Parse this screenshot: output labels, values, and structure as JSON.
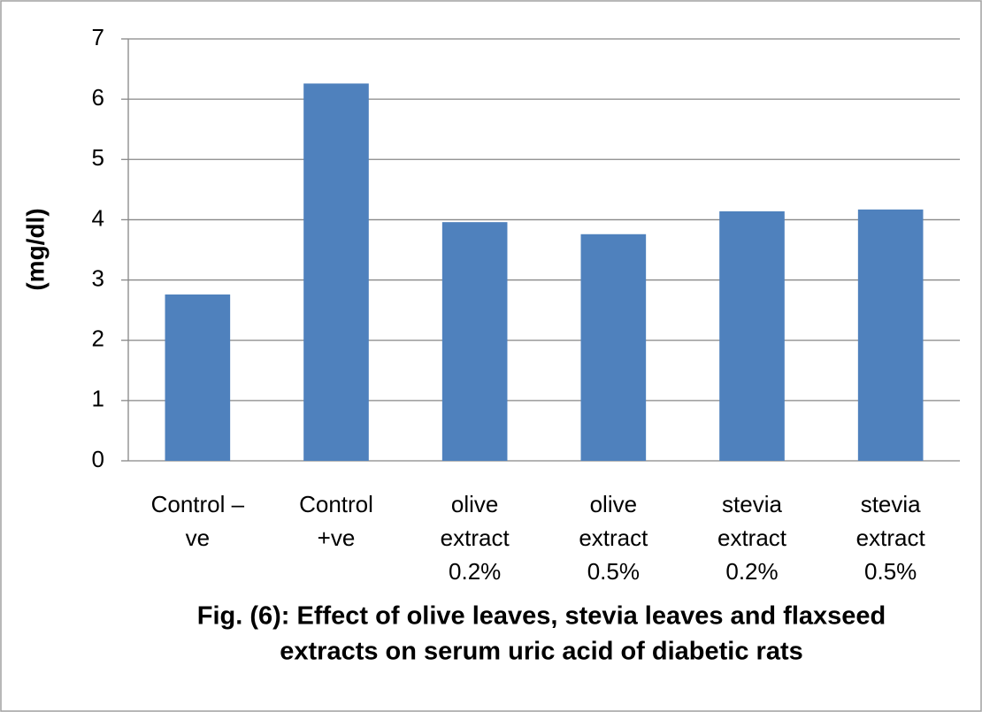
{
  "chart_data": {
    "type": "bar",
    "title": [
      "Fig. (6): Effect of olive leaves, stevia leaves and flaxseed",
      "extracts on serum uric acid of diabetic rats"
    ],
    "ylabel": "(mg/dl)",
    "categories": [
      [
        "Control –",
        "ve"
      ],
      [
        "Control",
        "+ve"
      ],
      [
        "olive",
        "extract",
        "0.2%"
      ],
      [
        "olive",
        "extract",
        "0.5%"
      ],
      [
        "stevia",
        "extract",
        "0.2%"
      ],
      [
        "stevia",
        "extract",
        "0.5%"
      ]
    ],
    "values": [
      2.76,
      6.26,
      3.96,
      3.76,
      4.14,
      4.17
    ],
    "color": "#4f81bd",
    "ylim": [
      0,
      7
    ],
    "yticks": [
      0,
      1,
      2,
      3,
      4,
      5,
      6,
      7
    ],
    "grid": true
  }
}
